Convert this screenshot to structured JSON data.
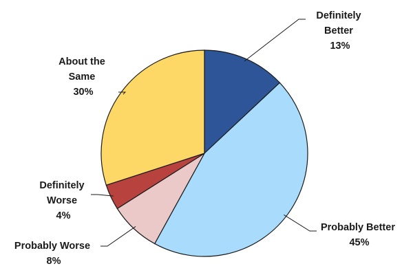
{
  "chart_data": {
    "type": "pie",
    "title": "",
    "start": "12 o'clock",
    "direction": "clockwise",
    "slices": [
      {
        "name": "Definitely Better",
        "value": 13,
        "label_lines": [
          "Definitely",
          "Better",
          "13%"
        ],
        "color": "#2E5597"
      },
      {
        "name": "Probably Better",
        "value": 45,
        "label_lines": [
          "Probably Better",
          "45%"
        ],
        "color": "#A9DCFC"
      },
      {
        "name": "Probably Worse",
        "value": 8,
        "label_lines": [
          "Probably Worse",
          "8%"
        ],
        "color": "#EBC9C9"
      },
      {
        "name": "Definitely Worse",
        "value": 4,
        "label_lines": [
          "Definitely",
          "Worse",
          "4%"
        ],
        "color": "#B7423E"
      },
      {
        "name": "About the Same",
        "value": 30,
        "label_lines": [
          "About the",
          "Same",
          "30%"
        ],
        "color": "#FDD867"
      }
    ]
  }
}
